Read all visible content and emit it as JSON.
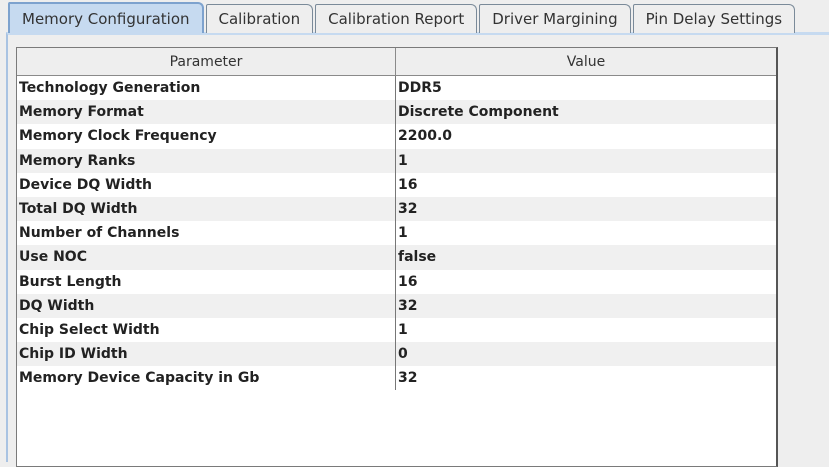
{
  "tabs": [
    {
      "label": "Memory Configuration",
      "selected": true
    },
    {
      "label": "Calibration"
    },
    {
      "label": "Calibration Report"
    },
    {
      "label": "Driver Margining"
    },
    {
      "label": "Pin Delay Settings"
    }
  ],
  "table": {
    "headers": [
      "Parameter",
      "Value"
    ],
    "rows": [
      [
        "Technology Generation",
        "DDR5"
      ],
      [
        "Memory Format",
        "Discrete Component"
      ],
      [
        "Memory Clock Frequency",
        "2200.0"
      ],
      [
        "Memory Ranks",
        "1"
      ],
      [
        "Device DQ Width",
        "16"
      ],
      [
        "Total DQ Width",
        "32"
      ],
      [
        "Number of Channels",
        "1"
      ],
      [
        "Use NOC",
        "false"
      ],
      [
        "Burst Length",
        "16"
      ],
      [
        "DQ Width",
        "32"
      ],
      [
        "Chip Select Width",
        "1"
      ],
      [
        "Chip ID Width",
        "0"
      ],
      [
        "Memory Device Capacity in Gb",
        "32"
      ]
    ]
  }
}
